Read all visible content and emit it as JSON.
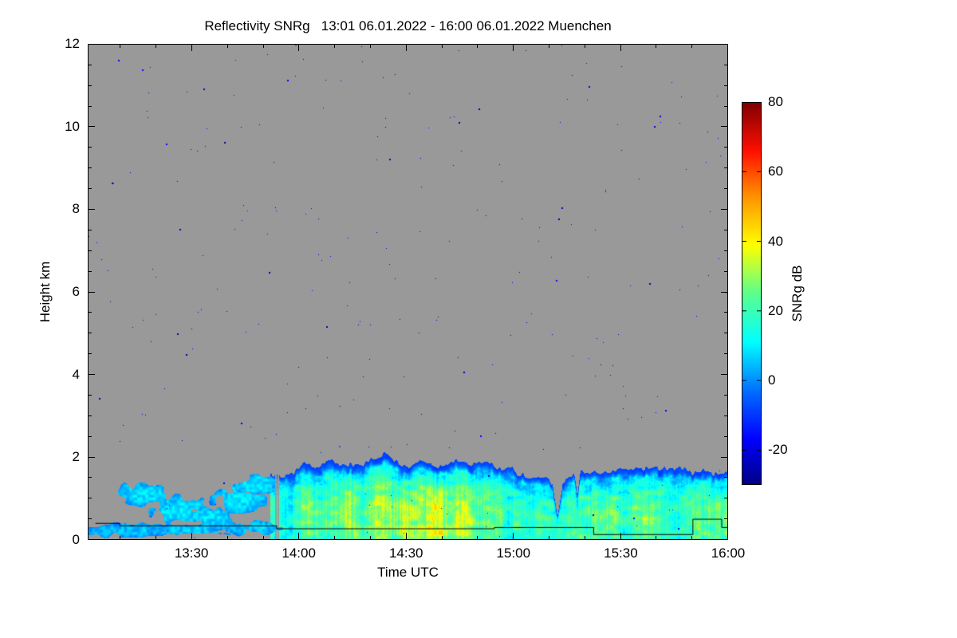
{
  "chart_data": {
    "type": "heatmap",
    "title": "Reflectivity SNRg   13:01 06.01.2022 - 16:00 06.01.2022 Muenchen",
    "xlabel": "Time UTC",
    "ylabel": "Height km",
    "x_start_label": "13:01",
    "x_end_label": "16:00",
    "x_total_minutes": 179,
    "x_ticks": [
      {
        "label": "13:30",
        "minutes": 29
      },
      {
        "label": "14:00",
        "minutes": 59
      },
      {
        "label": "14:30",
        "minutes": 89
      },
      {
        "label": "15:00",
        "minutes": 119
      },
      {
        "label": "15:30",
        "minutes": 149
      },
      {
        "label": "16:00",
        "minutes": 179
      }
    ],
    "x_minor_tick_minutes": 10,
    "y_ticks": [
      0,
      2,
      4,
      6,
      8,
      10,
      12
    ],
    "ylim": [
      0,
      12
    ],
    "grid": false,
    "no_data_color": "#999999",
    "colorbar": {
      "label": "SNRg dB",
      "ticks": [
        80,
        60,
        40,
        20,
        0,
        -20
      ],
      "min": -30,
      "max": 80,
      "stops": [
        [
          -30,
          "#000085"
        ],
        [
          -17,
          "#0000ff"
        ],
        [
          -4,
          "#0066ff"
        ],
        [
          11,
          "#00ffff"
        ],
        [
          25,
          "#5aff8c"
        ],
        [
          39,
          "#ffff00"
        ],
        [
          53,
          "#ff9100"
        ],
        [
          66,
          "#ff0f00"
        ],
        [
          80,
          "#7f0000"
        ]
      ]
    },
    "noise_speckle": {
      "count": 250,
      "db_min": -28,
      "db_max": -14
    },
    "cloud_layer": {
      "description": "Boundary-layer cloud and drizzle below ~2 km: patchy weak echoes 13:05-13:52, continuous layer 13:53-16:00 with embedded 20-35 dB cores, cloud top 1.4-2.0 km",
      "solid_start_t": 0.285,
      "top_profile": [
        [
          0.285,
          1.45
        ],
        [
          0.33,
          1.72
        ],
        [
          0.4,
          1.88
        ],
        [
          0.47,
          1.95
        ],
        [
          0.52,
          1.82
        ],
        [
          0.58,
          1.86
        ],
        [
          0.64,
          1.78
        ],
        [
          0.69,
          1.6
        ],
        [
          0.735,
          1.38
        ],
        [
          0.78,
          1.62
        ],
        [
          0.85,
          1.58
        ],
        [
          0.92,
          1.68
        ],
        [
          1.0,
          1.72
        ]
      ],
      "core_profile": [
        [
          0.285,
          16
        ],
        [
          0.35,
          24
        ],
        [
          0.45,
          28
        ],
        [
          0.52,
          30
        ],
        [
          0.6,
          27
        ],
        [
          0.66,
          20
        ],
        [
          0.71,
          15
        ],
        [
          0.76,
          19
        ],
        [
          0.82,
          23
        ],
        [
          0.9,
          21
        ],
        [
          1.0,
          19
        ]
      ],
      "gaps": [
        {
          "t": 0.733,
          "dt": 0.008,
          "top_km": 0.55
        },
        {
          "t": 0.764,
          "dt": 0.005,
          "top_km": 1.05
        }
      ],
      "patches": [
        {
          "t": 0.03,
          "h": 0.2,
          "rt": 0.028,
          "rh": 0.13,
          "db": 4,
          "seed": 11
        },
        {
          "t": 0.075,
          "h": 0.25,
          "rt": 0.055,
          "rh": 0.14,
          "db": 5,
          "seed": 31
        },
        {
          "t": 0.085,
          "h": 1.12,
          "rt": 0.042,
          "rh": 0.24,
          "db": 8,
          "seed": 23
        },
        {
          "t": 0.145,
          "h": 0.72,
          "rt": 0.038,
          "rh": 0.3,
          "db": 9,
          "seed": 41
        },
        {
          "t": 0.16,
          "h": 0.25,
          "rt": 0.06,
          "rh": 0.13,
          "db": 6,
          "seed": 53
        },
        {
          "t": 0.195,
          "h": 0.55,
          "rt": 0.03,
          "rh": 0.25,
          "db": 8,
          "seed": 61
        },
        {
          "t": 0.235,
          "h": 1.0,
          "rt": 0.035,
          "rh": 0.3,
          "db": 9,
          "seed": 71
        },
        {
          "t": 0.262,
          "h": 1.35,
          "rt": 0.028,
          "rh": 0.22,
          "db": 10,
          "seed": 83
        },
        {
          "t": 0.255,
          "h": 0.3,
          "rt": 0.045,
          "rh": 0.15,
          "db": 6,
          "seed": 97
        }
      ],
      "base_contour": [
        [
          0.012,
          0.4
        ],
        [
          0.05,
          0.4
        ],
        [
          0.05,
          0.34
        ],
        [
          0.295,
          0.34
        ],
        [
          0.295,
          0.27
        ],
        [
          0.635,
          0.27
        ],
        [
          0.635,
          0.3
        ],
        [
          0.79,
          0.3
        ],
        [
          0.79,
          0.13
        ],
        [
          0.945,
          0.13
        ],
        [
          0.945,
          0.5
        ],
        [
          0.99,
          0.5
        ],
        [
          0.99,
          0.3
        ],
        [
          1.0,
          0.3
        ]
      ]
    }
  }
}
